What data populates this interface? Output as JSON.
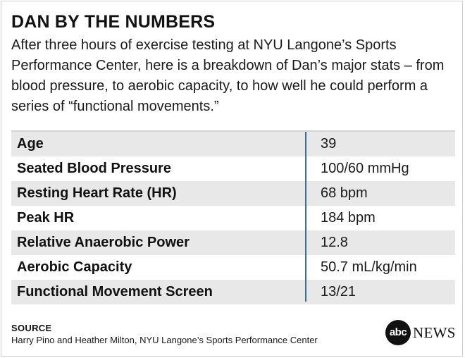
{
  "header": {
    "title": "DAN BY THE NUMBERS",
    "intro": "After three hours of exercise testing at NYU Langone’s Sports Performance Center, here is a breakdown of Dan’s major stats – from blood pressure, to aerobic capacity, to how well he could perform a series of “functional movements.”"
  },
  "stats": {
    "rows": [
      {
        "label": "Age",
        "value": "39"
      },
      {
        "label": "Seated Blood Pressure",
        "value": "100/60 mmHg"
      },
      {
        "label": "Resting Heart Rate (HR)",
        "value": "68 bpm"
      },
      {
        "label": "Peak HR",
        "value": "184 bpm"
      },
      {
        "label": "Relative Anaerobic Power",
        "value": "12.8"
      },
      {
        "label": "Aerobic Capacity",
        "value": "50.7 mL/kg/min"
      },
      {
        "label": "Functional Movement Screen",
        "value": "13/21"
      }
    ]
  },
  "source": {
    "heading": "SOURCE",
    "text": "Harry Pino and Heather Milton, NYU Langone’s Sports Performance Center"
  },
  "logo": {
    "abc": "abc",
    "news": "NEWS"
  },
  "colors": {
    "shaded_row": "#e8e8e8",
    "divider": "#3c6aa3",
    "rule": "#d3d3d3"
  }
}
